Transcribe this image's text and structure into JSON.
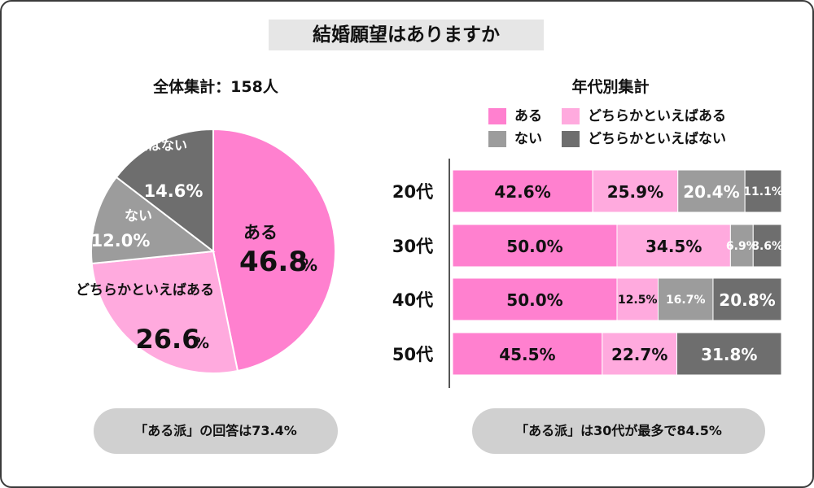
{
  "title": "結婚願望はありますか",
  "pie": {
    "title": "全体集計：158人",
    "callout": "「ある派」の回答は73.4%"
  },
  "bars": {
    "title": "年代別集計",
    "callout": "「ある派」は30代が最多で84.5%"
  },
  "legend": [
    {
      "label": "ある",
      "color": "#ff80cf"
    },
    {
      "label": "どちらかといえばある",
      "color": "#ffaade"
    },
    {
      "label": "ない",
      "color": "#9c9c9c"
    },
    {
      "label": "どちらかといえばない",
      "color": "#6e6e6e"
    }
  ],
  "chart_data": [
    {
      "type": "pie",
      "title": "全体集計：158人",
      "slices": [
        {
          "label": "ある",
          "value": 46.8,
          "color": "#ff80cf"
        },
        {
          "label": "どちらかといえばある",
          "value": 26.6,
          "color": "#ffaade"
        },
        {
          "label": "ない",
          "value": 12.0,
          "color": "#9c9c9c"
        },
        {
          "label": "どちらかといえばない",
          "value": 14.6,
          "color": "#6e6e6e"
        }
      ]
    },
    {
      "type": "bar",
      "stacked": true,
      "orientation": "horizontal",
      "percent": true,
      "title": "年代別集計",
      "categories": [
        "20代",
        "30代",
        "40代",
        "50代"
      ],
      "series": [
        {
          "name": "ある",
          "values": [
            42.6,
            50.0,
            50.0,
            45.5
          ],
          "color": "#ff80cf"
        },
        {
          "name": "どちらかといえばある",
          "values": [
            25.9,
            34.5,
            12.5,
            22.7
          ],
          "color": "#ffaade"
        },
        {
          "name": "ない",
          "values": [
            20.4,
            6.9,
            16.7,
            0
          ],
          "color": "#9c9c9c"
        },
        {
          "name": "どちらかといえばない",
          "values": [
            11.1,
            8.6,
            20.8,
            31.8
          ],
          "color": "#6e6e6e"
        }
      ],
      "xlim": [
        0,
        100
      ]
    }
  ]
}
